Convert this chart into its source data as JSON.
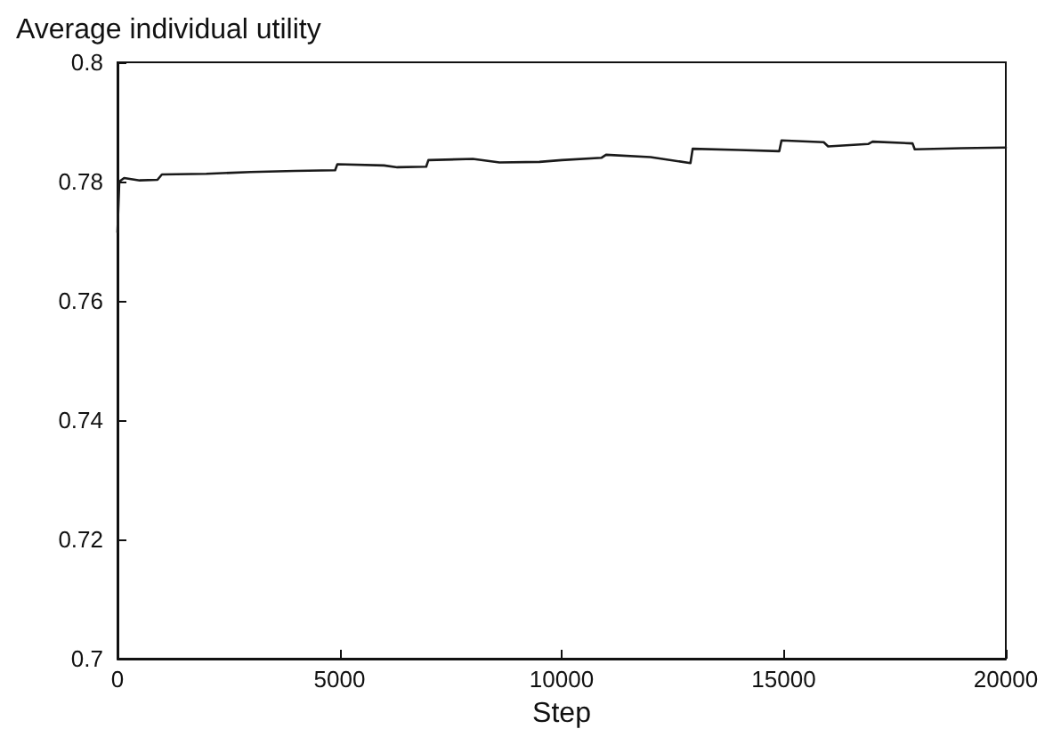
{
  "chart_data": {
    "type": "line",
    "title": "Average individual utility",
    "xlabel": "Step",
    "x": [
      0,
      40,
      150,
      500,
      900,
      1000,
      2000,
      3000,
      4000,
      4900,
      4950,
      6000,
      6300,
      6950,
      7000,
      8000,
      8600,
      9500,
      10000,
      10900,
      11000,
      12000,
      12900,
      12950,
      14000,
      14900,
      14950,
      15900,
      16000,
      16900,
      17000,
      17900,
      17950,
      19000,
      20000
    ],
    "series": [
      {
        "color": "#1a1a1a",
        "values": [
          0.7715,
          0.78,
          0.7806,
          0.7802,
          0.7803,
          0.7812,
          0.7813,
          0.7816,
          0.7818,
          0.7819,
          0.7829,
          0.7827,
          0.7824,
          0.7825,
          0.7836,
          0.7838,
          0.7832,
          0.7833,
          0.7836,
          0.784,
          0.7845,
          0.7841,
          0.7831,
          0.7855,
          0.7853,
          0.7851,
          0.7869,
          0.7866,
          0.7859,
          0.7863,
          0.7867,
          0.7864,
          0.7854,
          0.7856,
          0.7857
        ]
      }
    ],
    "xlim": [
      0,
      20000
    ],
    "xticks": [
      0,
      5000,
      10000,
      15000,
      20000
    ],
    "ylim": [
      0.7,
      0.8
    ],
    "yticks": [
      0.7,
      0.72,
      0.74,
      0.76,
      0.78,
      0.8
    ],
    "grid": false,
    "marker": "none",
    "line_style": "solid"
  }
}
